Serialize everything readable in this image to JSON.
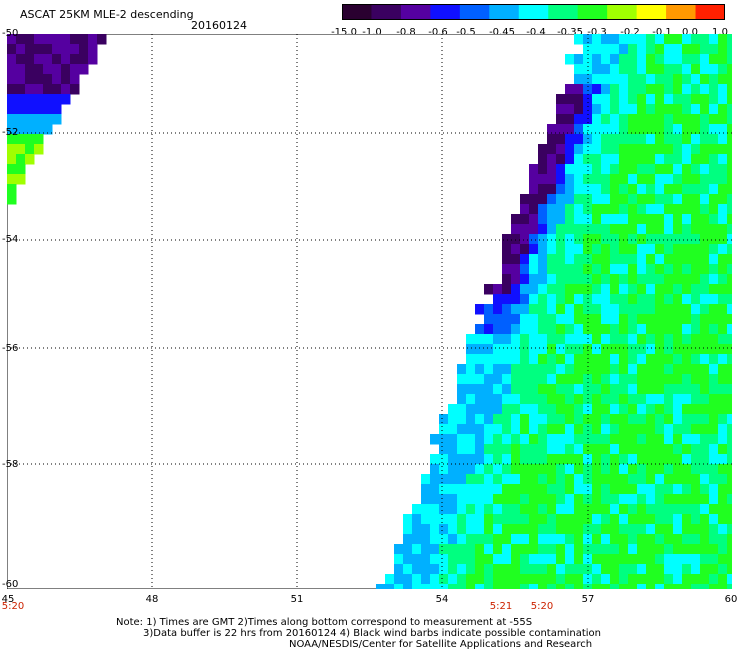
{
  "title": "ASCAT 25KM MLE-2 descending",
  "date": "20160124",
  "colorbar": {
    "labels": [
      "-15.0",
      "-1.0",
      "-0.8",
      "-0.6",
      "-0.5",
      "-0.45",
      "-0.4",
      "-0.35",
      "-0.3",
      "-0.2",
      "-0.1",
      "0.0",
      "1.0"
    ],
    "colors": [
      "#2a0030",
      "#3a0060",
      "#5500a0",
      "#1010ff",
      "#0060ff",
      "#00b0ff",
      "#00ffff",
      "#00ff80",
      "#20ff20",
      "#a0ff00",
      "#ffff00",
      "#ff9900",
      "#ff2000"
    ]
  },
  "axes": {
    "lat_labels": [
      "-50",
      "-52",
      "-54",
      "-56",
      "-58",
      "-60"
    ],
    "lon_labels": [
      "45",
      "48",
      "51",
      "54",
      "57",
      "60"
    ]
  },
  "time_labels": [
    "5:20",
    "5:21",
    "5:20"
  ],
  "notes": [
    "Note: 1) Times are GMT 2)Times along bottom correspond to measurement at -55S",
    "3)Data buffer is 22 hrs from 20160124 4) Black wind barbs indicate possible contamination",
    "NOAA/NESDIS/Center for Satellite Applications and Research"
  ]
}
